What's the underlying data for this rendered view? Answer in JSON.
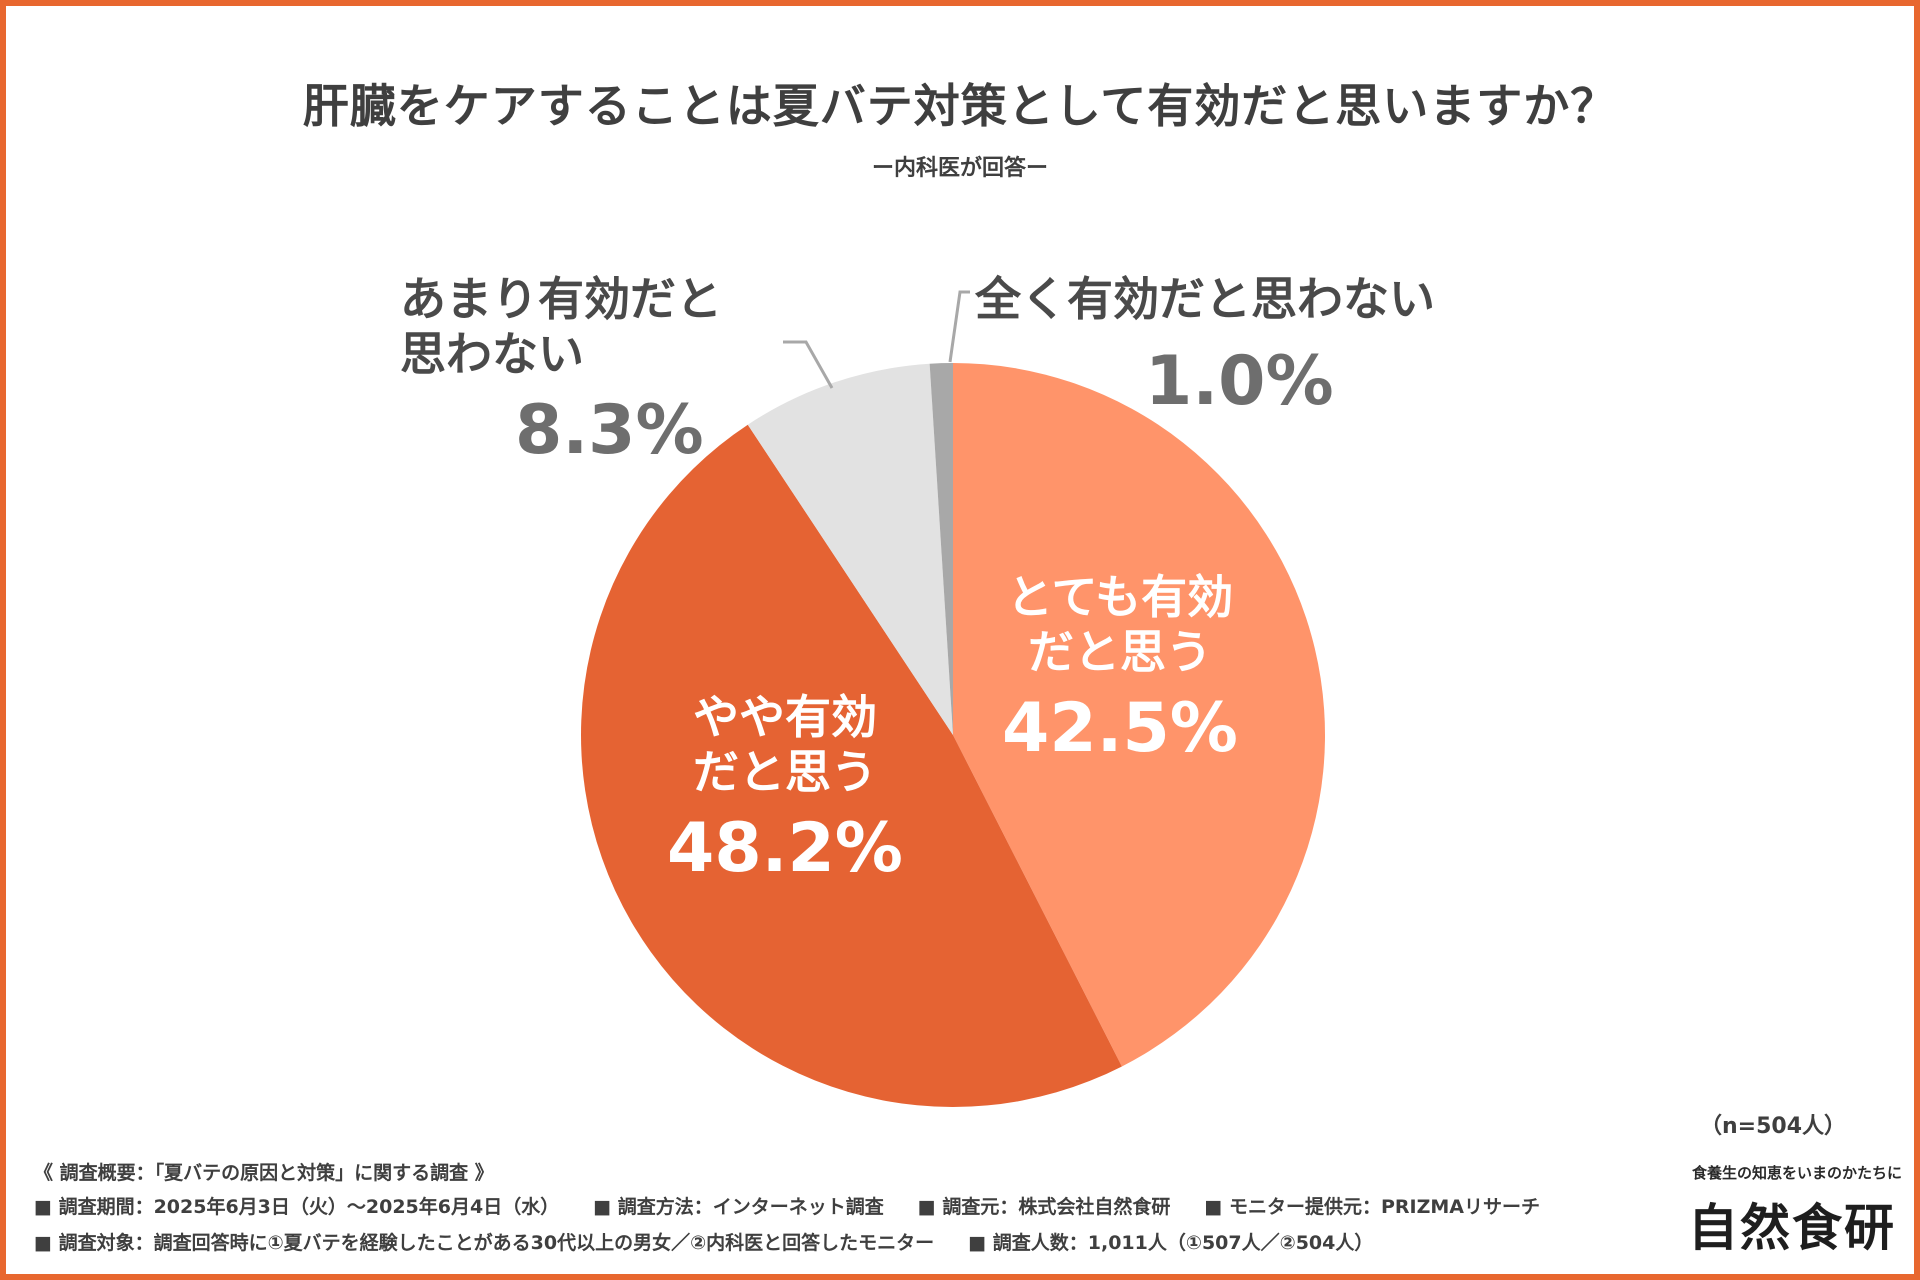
{
  "chart_data": {
    "type": "pie",
    "title": "肝臓をケアすることは夏バテ対策として有効だと思いますか？",
    "subtitle": "ー内科医が回答ー",
    "n_label": "（n=504人）",
    "slices": [
      {
        "label_line1": "とても有効",
        "label_line2": "だと思う",
        "value": 42.5,
        "value_label": "42.5%",
        "color": "#ff946a"
      },
      {
        "label_line1": "やや有効",
        "label_line2": "だと思う",
        "value": 48.2,
        "value_label": "48.2%",
        "color": "#e56333"
      },
      {
        "label_line1": "あまり有効だと",
        "label_line2": "思わない",
        "value": 8.3,
        "value_label": "8.3%",
        "color": "#e2e2e2"
      },
      {
        "label_line1": "全く有効だと思わない",
        "label_line2": "",
        "value": 1.0,
        "value_label": "1.0%",
        "color": "#a8a8a8"
      }
    ]
  },
  "footer": {
    "heading": "《 調査概要：「夏バテの原因と対策」に関する調査 》",
    "line1": [
      "■ 調査期間：2025年6月3日（火）～2025年6月4日（水）",
      "■ 調査方法：インターネット調査",
      "■ 調査元：株式会社自然食研",
      "■ モニター提供元：PRIZMAリサーチ"
    ],
    "line2": [
      "■ 調査対象：調査回答時に①夏バテを経験したことがある30代以上の男女／②内科医と回答したモニター",
      "■ 調査人数：1,011人（①507人／②504人）"
    ]
  },
  "brand": {
    "tagline": "食養生の知恵をいまのかたちに",
    "name": "自然食研"
  }
}
